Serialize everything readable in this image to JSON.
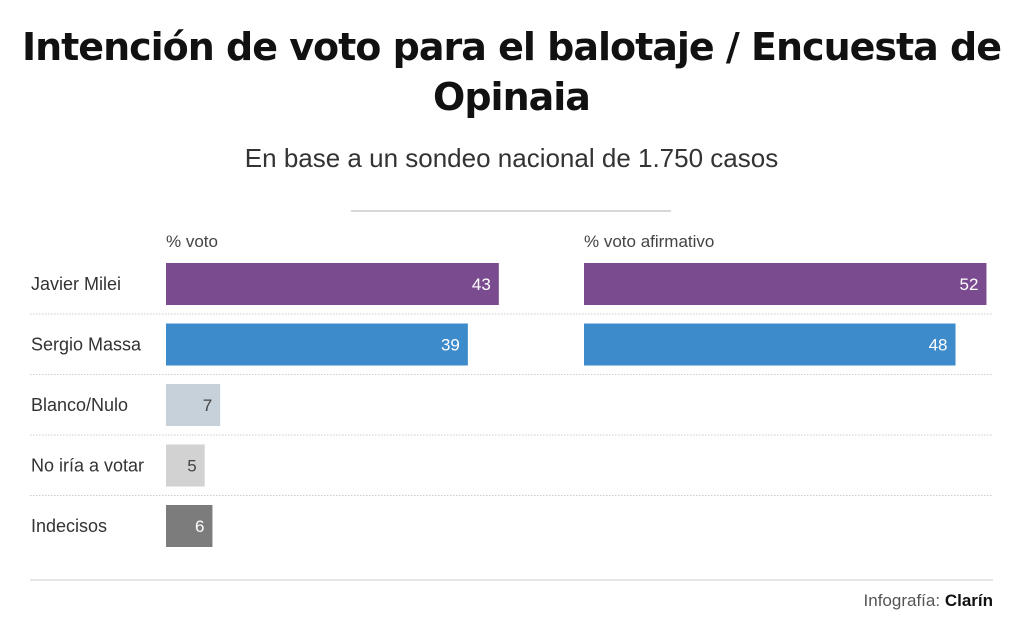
{
  "chart_data": {
    "type": "bar",
    "title": "Intención de voto para el balotaje / Encuesta de Opinaia",
    "subtitle": "En base a un sondeo nacional de 1.750 casos",
    "categories": [
      "Javier Milei",
      "Sergio Massa",
      "Blanco/Nulo",
      "No iría a votar",
      "Indecisos"
    ],
    "colors": [
      "#7b4b8f",
      "#3d8bcb",
      "#c6d1d9",
      "#d2d2d2",
      "#7c7c7c"
    ],
    "label_colors": [
      "#ffffff",
      "#ffffff",
      "#444444",
      "#444444",
      "#ffffff"
    ],
    "series": [
      {
        "name": "% voto",
        "values": [
          43,
          39,
          7,
          5,
          6
        ]
      },
      {
        "name": "% voto afirmativo",
        "values": [
          52,
          48,
          null,
          null,
          null
        ]
      }
    ],
    "orientation": "horizontal",
    "grid": false,
    "credit_label": "Infografía:",
    "credit_source": "Clarín"
  }
}
